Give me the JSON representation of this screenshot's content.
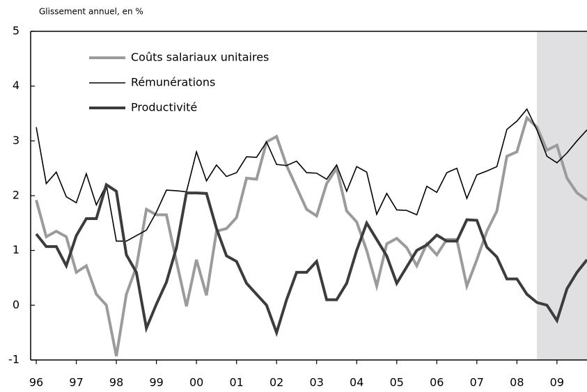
{
  "chart_data": {
    "type": "line",
    "y_axis_label": "Glissement annuel, en %",
    "x": [
      1996,
      1996.25,
      1996.5,
      1996.75,
      1997,
      1997.25,
      1997.5,
      1997.75,
      1998,
      1998.25,
      1998.5,
      1998.75,
      1999,
      1999.25,
      1999.5,
      1999.75,
      2000,
      2000.25,
      2000.5,
      2000.75,
      2001,
      2001.25,
      2001.5,
      2001.75,
      2002,
      2002.25,
      2002.5,
      2002.75,
      2003,
      2003.25,
      2003.5,
      2003.75,
      2004,
      2004.25,
      2004.5,
      2004.75,
      2005,
      2005.25,
      2005.5,
      2005.75,
      2006,
      2006.25,
      2006.5,
      2006.75,
      2007,
      2007.25,
      2007.5,
      2007.75,
      2008,
      2008.25,
      2008.5,
      2008.75,
      2009,
      2009.25,
      2009.5,
      2009.75
    ],
    "series": [
      {
        "name": "Coûts salariaux unitaires",
        "color": "#9b9b9b",
        "width": 4,
        "values": [
          1.92,
          1.25,
          1.35,
          1.25,
          0.6,
          0.72,
          0.2,
          0.0,
          -0.93,
          0.2,
          0.7,
          1.75,
          1.65,
          1.65,
          0.8,
          -0.02,
          0.83,
          0.18,
          1.35,
          1.4,
          1.6,
          2.32,
          2.3,
          2.98,
          3.08,
          2.55,
          2.15,
          1.75,
          1.63,
          2.22,
          2.5,
          1.72,
          1.52,
          1.0,
          0.35,
          1.12,
          1.22,
          1.05,
          0.72,
          1.12,
          0.92,
          1.2,
          1.2,
          0.35,
          0.83,
          1.35,
          1.72,
          2.72,
          2.8,
          3.42,
          3.25,
          2.83,
          2.92,
          2.32,
          2.05,
          1.92
        ]
      },
      {
        "name": "Rémunérations",
        "color": "#000000",
        "width": 1.6,
        "values": [
          3.25,
          2.22,
          2.43,
          1.98,
          1.87,
          2.4,
          1.83,
          2.2,
          1.17,
          1.17,
          1.27,
          1.37,
          1.7,
          2.1,
          2.09,
          2.07,
          2.8,
          2.27,
          2.56,
          2.35,
          2.42,
          2.71,
          2.7,
          2.98,
          2.57,
          2.55,
          2.63,
          2.42,
          2.41,
          2.3,
          2.56,
          2.08,
          2.53,
          2.43,
          1.66,
          2.04,
          1.74,
          1.73,
          1.65,
          2.17,
          2.06,
          2.42,
          2.5,
          1.95,
          2.38,
          2.45,
          2.53,
          3.21,
          3.36,
          3.58,
          3.2,
          2.72,
          2.6,
          2.78,
          3.0,
          3.2
        ]
      },
      {
        "name": "Productivité",
        "color": "#3c3c3c",
        "width": 4,
        "values": [
          1.3,
          1.07,
          1.07,
          0.72,
          1.27,
          1.58,
          1.58,
          2.2,
          2.08,
          0.92,
          0.6,
          -0.42,
          0.02,
          0.42,
          1.05,
          2.05,
          2.05,
          2.04,
          1.4,
          0.9,
          0.8,
          0.4,
          0.2,
          0.0,
          -0.5,
          0.1,
          0.6,
          0.6,
          0.8,
          0.1,
          0.1,
          0.4,
          1.0,
          1.5,
          1.2,
          0.9,
          0.4,
          0.7,
          1.0,
          1.1,
          1.28,
          1.17,
          1.17,
          1.56,
          1.55,
          1.06,
          0.88,
          0.48,
          0.48,
          0.2,
          0.05,
          0.0,
          -0.28,
          0.3,
          0.6,
          0.83
        ]
      }
    ],
    "xlim": [
      1995.86,
      2009.75
    ],
    "xticks": [
      {
        "value": 1996,
        "label": "96"
      },
      {
        "value": 1997,
        "label": "97"
      },
      {
        "value": 1998,
        "label": "98"
      },
      {
        "value": 1999,
        "label": "99"
      },
      {
        "value": 2000,
        "label": "00"
      },
      {
        "value": 2001,
        "label": "01"
      },
      {
        "value": 2002,
        "label": "02"
      },
      {
        "value": 2003,
        "label": "03"
      },
      {
        "value": 2004,
        "label": "04"
      },
      {
        "value": 2005,
        "label": "05"
      },
      {
        "value": 2006,
        "label": "06"
      },
      {
        "value": 2007,
        "label": "07"
      },
      {
        "value": 2008,
        "label": "08"
      },
      {
        "value": 2009,
        "label": "09"
      }
    ],
    "ylim": [
      -1,
      5
    ],
    "yticks": [
      -1,
      0,
      1,
      2,
      3,
      4,
      5
    ],
    "shaded_range": [
      2008.5,
      2009.75
    ],
    "shade_color": "#e0e0e2"
  }
}
